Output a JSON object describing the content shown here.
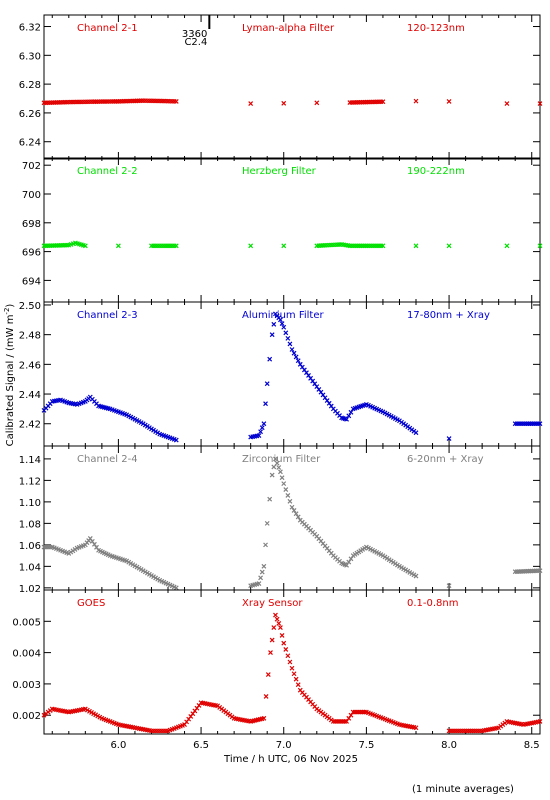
{
  "x_axis_label": "Time / h UTC, 06 Nov 2025",
  "y_axis_label": "Calibrated Signal / (mW m",
  "y_axis_label_sup": "-2",
  "y_axis_label_end": ")",
  "footnote": "(1 minute averages)",
  "event_marker": {
    "id": "3360",
    "class": "C2.4",
    "x": 6.55
  },
  "chart_data": [
    {
      "type": "scatter",
      "labels": [
        "Channel 2-1",
        "Lyman-alpha Filter",
        "120-123nm"
      ],
      "color": "#e00000",
      "xlim": [
        5.55,
        8.55
      ],
      "ylim": [
        6.228,
        6.328
      ],
      "yticks": [
        "6.24",
        "6.26",
        "6.28",
        "6.30",
        "6.32"
      ],
      "yticks_num": [
        6.24,
        6.26,
        6.28,
        6.3,
        6.32
      ],
      "points": [
        [
          5.55,
          6.267
        ],
        [
          5.7,
          6.2675
        ],
        [
          5.85,
          6.2678
        ],
        [
          6.0,
          6.268
        ],
        [
          6.15,
          6.2685
        ],
        [
          6.25,
          6.2683
        ],
        [
          6.35,
          6.268
        ],
        [
          6.8,
          6.2665
        ],
        [
          7.0,
          6.2667
        ],
        [
          7.2,
          6.267
        ],
        [
          7.4,
          6.2672
        ],
        [
          7.6,
          6.2678
        ],
        [
          7.8,
          6.2682
        ],
        [
          8.0,
          6.268
        ],
        [
          8.35,
          6.2665
        ],
        [
          8.55,
          6.2665
        ]
      ]
    },
    {
      "type": "scatter",
      "labels": [
        "Channel 2-2",
        "Herzberg Filter",
        "190-222nm"
      ],
      "color": "#00e000",
      "xlim": [
        5.55,
        8.55
      ],
      "ylim": [
        692.5,
        702.5
      ],
      "yticks": [
        "694",
        "696",
        "698",
        "700",
        "702"
      ],
      "yticks_num": [
        694,
        696,
        698,
        700,
        702
      ],
      "points": [
        [
          5.55,
          696.4
        ],
        [
          5.7,
          696.45
        ],
        [
          5.74,
          696.6
        ],
        [
          5.8,
          696.4
        ],
        [
          6.0,
          696.4
        ],
        [
          6.2,
          696.4
        ],
        [
          6.35,
          696.4
        ],
        [
          6.8,
          696.4
        ],
        [
          7.0,
          696.4
        ],
        [
          7.2,
          696.4
        ],
        [
          7.35,
          696.5
        ],
        [
          7.4,
          696.4
        ],
        [
          7.6,
          696.4
        ],
        [
          7.8,
          696.4
        ],
        [
          8.0,
          696.4
        ],
        [
          8.35,
          696.4
        ],
        [
          8.55,
          696.4
        ]
      ]
    },
    {
      "type": "scatter",
      "labels": [
        "Channel 2-3",
        "Aluminium Filter",
        "17-80nm + Xray"
      ],
      "color": "#0000d0",
      "xlim": [
        5.55,
        8.55
      ],
      "ylim": [
        2.405,
        2.502
      ],
      "yticks": [
        "2.42",
        "2.44",
        "2.46",
        "2.48",
        "2.50"
      ],
      "yticks_num": [
        2.42,
        2.44,
        2.46,
        2.48,
        2.5
      ],
      "points": [
        [
          5.55,
          2.429
        ],
        [
          5.6,
          2.435
        ],
        [
          5.65,
          2.436
        ],
        [
          5.7,
          2.434
        ],
        [
          5.75,
          2.433
        ],
        [
          5.8,
          2.435
        ],
        [
          5.83,
          2.438
        ],
        [
          5.88,
          2.432
        ],
        [
          5.95,
          2.43
        ],
        [
          6.05,
          2.426
        ],
        [
          6.15,
          2.42
        ],
        [
          6.25,
          2.413
        ],
        [
          6.35,
          2.409
        ],
        [
          6.8,
          2.411
        ],
        [
          6.85,
          2.412
        ],
        [
          6.88,
          2.42
        ],
        [
          6.9,
          2.447
        ],
        [
          6.93,
          2.48
        ],
        [
          6.95,
          2.494
        ],
        [
          6.98,
          2.49
        ],
        [
          7.0,
          2.485
        ],
        [
          7.05,
          2.47
        ],
        [
          7.1,
          2.46
        ],
        [
          7.2,
          2.445
        ],
        [
          7.3,
          2.43
        ],
        [
          7.35,
          2.424
        ],
        [
          7.38,
          2.423
        ],
        [
          7.42,
          2.43
        ],
        [
          7.5,
          2.433
        ],
        [
          7.6,
          2.428
        ],
        [
          7.7,
          2.422
        ],
        [
          7.8,
          2.414
        ],
        [
          8.0,
          2.41
        ],
        [
          8.4,
          2.42
        ],
        [
          8.55,
          2.42
        ]
      ]
    },
    {
      "type": "scatter",
      "labels": [
        "Channel 2-4",
        "Zirconium Filter",
        "6-20nm + Xray"
      ],
      "color": "#808080",
      "xlim": [
        5.55,
        8.55
      ],
      "ylim": [
        1.018,
        1.152
      ],
      "yticks": [
        "1.02",
        "1.04",
        "1.06",
        "1.08",
        "1.10",
        "1.12",
        "1.14"
      ],
      "yticks_num": [
        1.02,
        1.04,
        1.06,
        1.08,
        1.1,
        1.12,
        1.14
      ],
      "points": [
        [
          5.55,
          1.058
        ],
        [
          5.6,
          1.058
        ],
        [
          5.65,
          1.055
        ],
        [
          5.7,
          1.052
        ],
        [
          5.75,
          1.057
        ],
        [
          5.8,
          1.06
        ],
        [
          5.83,
          1.066
        ],
        [
          5.88,
          1.055
        ],
        [
          5.95,
          1.05
        ],
        [
          6.05,
          1.045
        ],
        [
          6.15,
          1.036
        ],
        [
          6.25,
          1.027
        ],
        [
          6.35,
          1.02
        ],
        [
          6.8,
          1.022
        ],
        [
          6.85,
          1.024
        ],
        [
          6.88,
          1.04
        ],
        [
          6.9,
          1.08
        ],
        [
          6.93,
          1.125
        ],
        [
          6.95,
          1.14
        ],
        [
          6.98,
          1.128
        ],
        [
          7.0,
          1.117
        ],
        [
          7.05,
          1.095
        ],
        [
          7.1,
          1.083
        ],
        [
          7.2,
          1.068
        ],
        [
          7.3,
          1.05
        ],
        [
          7.35,
          1.043
        ],
        [
          7.38,
          1.041
        ],
        [
          7.42,
          1.05
        ],
        [
          7.5,
          1.058
        ],
        [
          7.6,
          1.05
        ],
        [
          7.7,
          1.04
        ],
        [
          7.8,
          1.031
        ],
        [
          8.0,
          1.022
        ],
        [
          8.4,
          1.035
        ],
        [
          8.55,
          1.036
        ]
      ]
    },
    {
      "type": "scatter",
      "labels": [
        "GOES",
        "Xray Sensor",
        "0.1-0.8nm"
      ],
      "color": "#e00000",
      "xlim": [
        5.55,
        8.55
      ],
      "ylim": [
        0.0014,
        0.006
      ],
      "yticks": [
        "0.002",
        "0.003",
        "0.004",
        "0.005"
      ],
      "yticks_num": [
        0.002,
        0.003,
        0.004,
        0.005
      ],
      "points": [
        [
          5.55,
          0.002
        ],
        [
          5.6,
          0.0022
        ],
        [
          5.7,
          0.0021
        ],
        [
          5.8,
          0.0022
        ],
        [
          5.9,
          0.0019
        ],
        [
          6.0,
          0.0017
        ],
        [
          6.1,
          0.0016
        ],
        [
          6.2,
          0.0015
        ],
        [
          6.3,
          0.0015
        ],
        [
          6.4,
          0.0017
        ],
        [
          6.5,
          0.0024
        ],
        [
          6.6,
          0.0023
        ],
        [
          6.7,
          0.0019
        ],
        [
          6.8,
          0.0018
        ],
        [
          6.88,
          0.0019
        ],
        [
          6.92,
          0.004
        ],
        [
          6.95,
          0.0052
        ],
        [
          6.98,
          0.0048
        ],
        [
          7.0,
          0.0043
        ],
        [
          7.05,
          0.0035
        ],
        [
          7.1,
          0.0028
        ],
        [
          7.2,
          0.0022
        ],
        [
          7.3,
          0.0018
        ],
        [
          7.38,
          0.0018
        ],
        [
          7.42,
          0.0021
        ],
        [
          7.5,
          0.0021
        ],
        [
          7.6,
          0.0019
        ],
        [
          7.7,
          0.0017
        ],
        [
          7.8,
          0.0016
        ],
        [
          8.0,
          0.0015
        ],
        [
          8.2,
          0.0015
        ],
        [
          8.3,
          0.0016
        ],
        [
          8.35,
          0.0018
        ],
        [
          8.45,
          0.0017
        ],
        [
          8.55,
          0.0018
        ]
      ]
    }
  ],
  "x_ticks": [
    "6.0",
    "6.5",
    "7.0",
    "7.5",
    "8.0",
    "8.5"
  ],
  "x_ticks_num": [
    6.0,
    6.5,
    7.0,
    7.5,
    8.0,
    8.5
  ]
}
